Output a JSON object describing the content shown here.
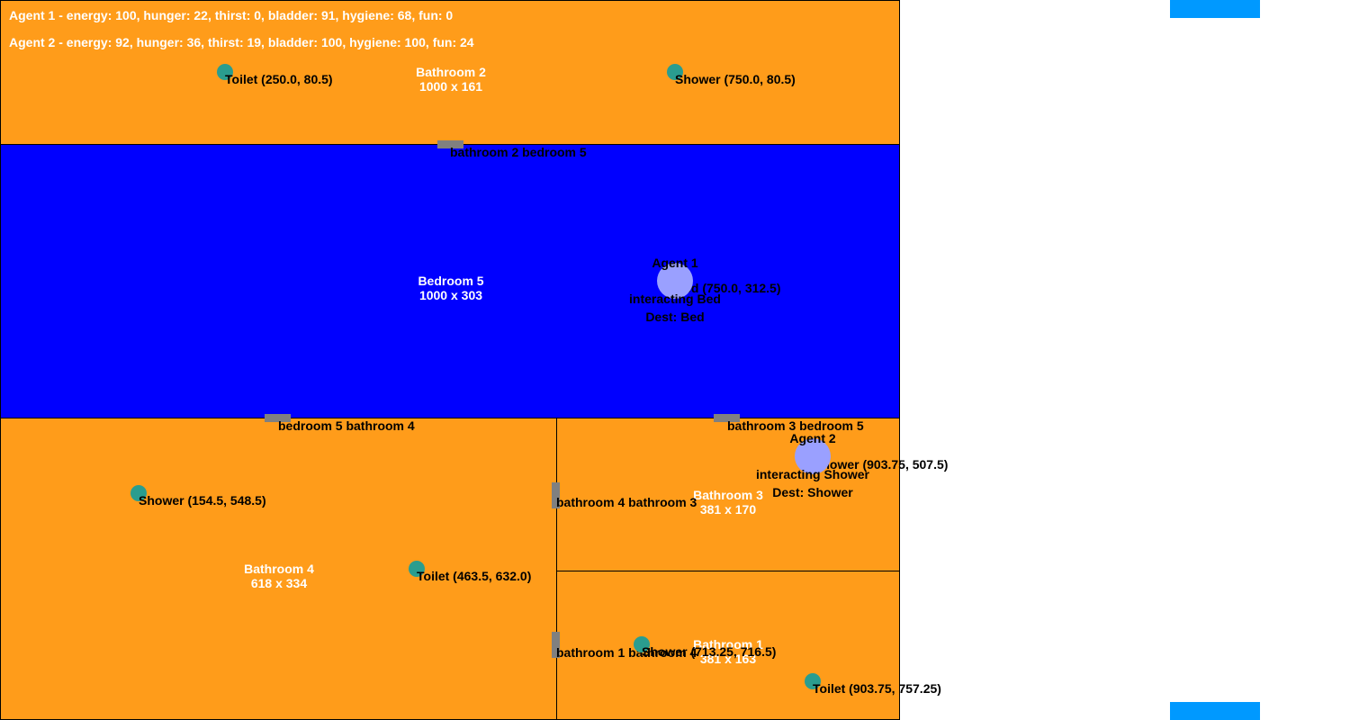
{
  "hud": {
    "agent1": "Agent 1 - energy: 100, hunger: 22, thirst: 0, bladder: 91, hygiene: 68, fun: 0",
    "agent2": "Agent 2 - energy: 92, hunger: 36, thirst: 19, bladder: 100, hygiene: 100, fun: 24"
  },
  "rooms": {
    "bathroom2": {
      "name": "Bathroom 2",
      "size": "1000 x 161"
    },
    "bedroom5": {
      "name": "Bedroom 5",
      "size": "1000 x 303"
    },
    "bathroom4": {
      "name": "Bathroom 4",
      "size": "618 x 334"
    },
    "bathroom3": {
      "name": "Bathroom 3",
      "size": "381 x 170"
    },
    "bathroom1": {
      "name": "Bathroom 1",
      "size": "381 x 163"
    }
  },
  "doors": {
    "bathroom2_bedroom5": "bathroom 2 bedroom 5",
    "bedroom5_bathroom4": "bedroom 5 bathroom 4",
    "bathroom3_bedroom5": "bathroom 3 bedroom 5",
    "bathroom4_bathroom3": "bathroom 4 bathroom 3",
    "bathroom1_bathroom4": "bathroom 1 bathroom 4"
  },
  "objects": {
    "toilet_b2": "Toilet (250.0, 80.5)",
    "shower_b2": "Shower (750.0, 80.5)",
    "bed_b5": "Bed (750.0, 312.5)",
    "shower_b4": "Shower (154.5, 548.5)",
    "toilet_b4": "Toilet (463.5, 632.0)",
    "shower_b3": "Shower (903.75, 507.5)",
    "shower_b1": "Shower (713.25, 716.5)",
    "toilet_b1": "Toilet (903.75, 757.25)"
  },
  "agents": {
    "agent1": {
      "name": "Agent 1",
      "status": "interacting Bed",
      "dest": "Dest: Bed"
    },
    "agent2": {
      "name": "Agent 2",
      "status": "interacting Shower",
      "dest": "Dest: Shower"
    }
  },
  "colors": {
    "bathroom": "#ff9c1a",
    "bedroom": "#0000ff",
    "door": "#808080",
    "object": "#2a9d8f",
    "agent": "#9aa0ff",
    "window": "#0099ff"
  }
}
